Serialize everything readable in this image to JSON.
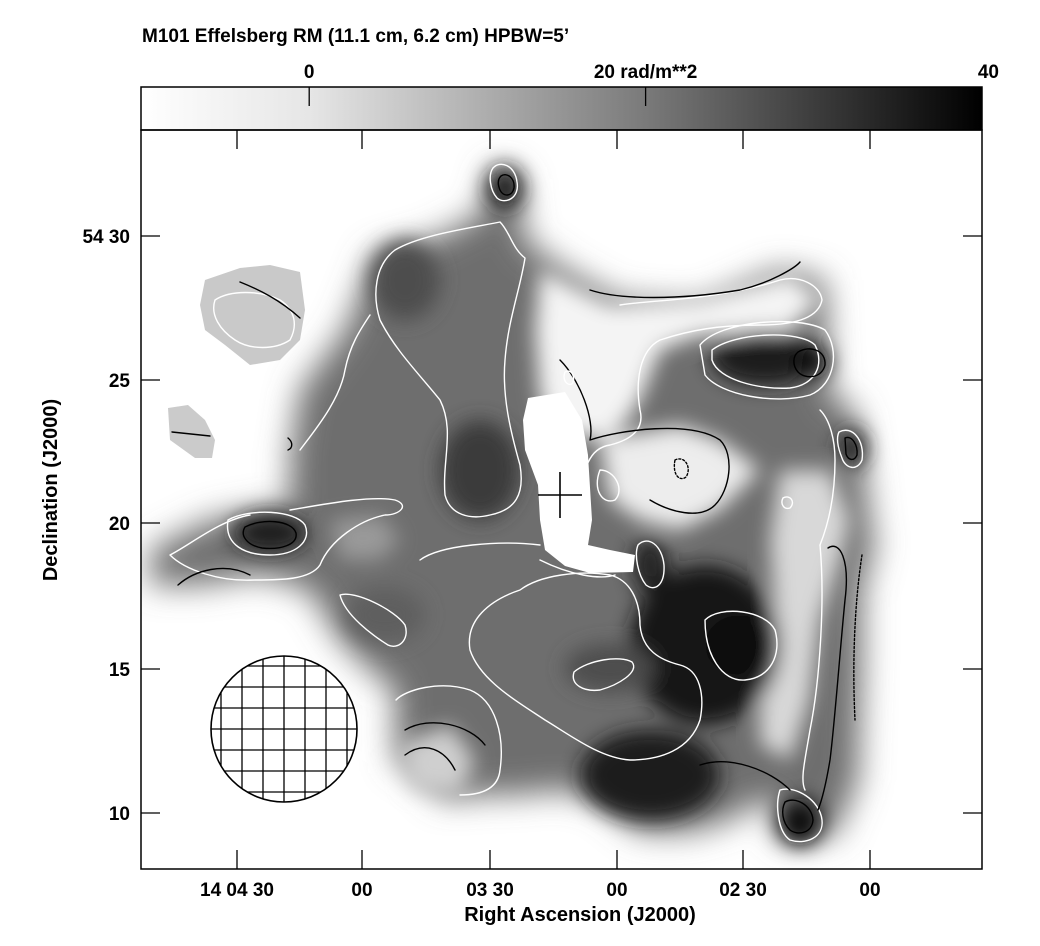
{
  "chart_data": {
    "type": "heatmap",
    "title": "M101   Effelsberg   RM (11.1 cm, 6.2 cm)   HPBW=5’",
    "colorbar": {
      "labels": [
        "0",
        "20 rad/m**2",
        "40"
      ],
      "values": [
        0,
        20,
        40
      ],
      "range": [
        -10,
        40
      ],
      "colormap": "grayscale, white=low, black=high"
    },
    "xlabel": "Right Ascension (J2000)",
    "ylabel": "Declination (J2000)",
    "x_ticks": [
      "14 04 30",
      "00",
      "03 30",
      "00",
      "02 30",
      "00"
    ],
    "y_ticks": [
      "54 30",
      "25",
      "20",
      "15",
      "10"
    ],
    "blobs": [
      {
        "ra": "03 25",
        "dec": 32.0,
        "rm": 40
      },
      {
        "ra": "02 19",
        "dec": 25.5,
        "rm": 40
      },
      {
        "ra": "02 05",
        "dec": 22.7,
        "rm": 40
      },
      {
        "ra": "04 20",
        "dec": 19.8,
        "rm": 40
      },
      {
        "ra": "02 53",
        "dec": 18.0,
        "rm": 35
      },
      {
        "ra": "02 34",
        "dec": 15.5,
        "rm": 40
      },
      {
        "ra": "02 20",
        "dec": 9.7,
        "rm": 40
      },
      {
        "ra": "02 50",
        "dec": 11.0,
        "rm": 32
      },
      {
        "ra": "03 32",
        "dec": 21.5,
        "rm": 24
      },
      {
        "ra": "03 56",
        "dec": 26.5,
        "rm": 20
      },
      {
        "ra": "03 00",
        "dec": 14.8,
        "rm": 22
      }
    ],
    "legend_position": "none",
    "grid": false
  }
}
